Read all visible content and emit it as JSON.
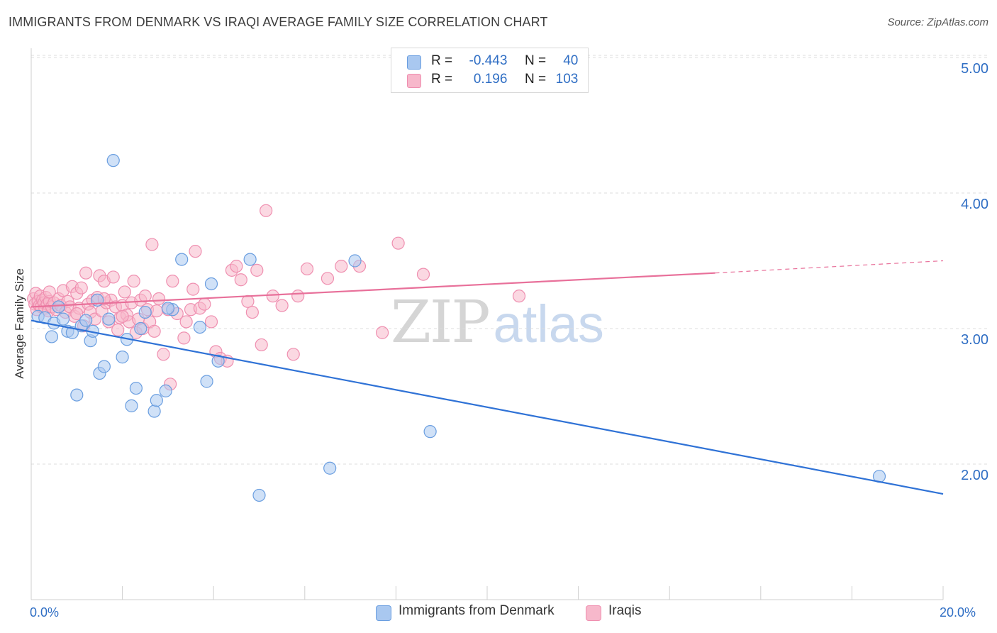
{
  "title": "IMMIGRANTS FROM DENMARK VS IRAQI AVERAGE FAMILY SIZE CORRELATION CHART",
  "source": "Source: ZipAtlas.com",
  "watermark": {
    "zip": "ZIP",
    "atlas": "atlas"
  },
  "legend": {
    "rows": [
      {
        "r_label": "R =",
        "r_value": "-0.443",
        "n_label": "N =",
        "n_value": "40"
      },
      {
        "r_label": "R =",
        "r_value": "0.196",
        "n_label": "N =",
        "n_value": "103"
      }
    ]
  },
  "colors": {
    "blue_fill": "#a9c8f0",
    "blue_stroke": "#6a9ee0",
    "blue_line": "#2f72d6",
    "pink_fill": "#f7b8cb",
    "pink_stroke": "#ef8fb0",
    "pink_line": "#e8709a",
    "grid": "#dcdcdc",
    "axis_text": "#2f6ec4"
  },
  "chart_data": {
    "type": "scatter",
    "title": "IMMIGRANTS FROM DENMARK VS IRAQI AVERAGE FAMILY SIZE CORRELATION CHART",
    "xlabel": "",
    "ylabel": "Average Family Size",
    "xlim": [
      0,
      20
    ],
    "ylim": [
      1.2,
      5.1
    ],
    "x_tick_labels": [
      "0.0%",
      "20.0%"
    ],
    "y_ticks": [
      2.0,
      3.0,
      4.0,
      5.0
    ],
    "y_tick_labels": [
      "2.00",
      "3.00",
      "4.00",
      "5.00"
    ],
    "grid": true,
    "legend_position": "top-center",
    "series": [
      {
        "name": "Immigrants from Denmark",
        "color": "#6a9ee0",
        "r": -0.443,
        "n": 40,
        "trend": {
          "x": [
            0,
            20
          ],
          "y": [
            3.06,
            1.78
          ]
        },
        "points": [
          [
            0.15,
            3.09
          ],
          [
            0.3,
            3.08
          ],
          [
            0.45,
            2.94
          ],
          [
            0.5,
            3.04
          ],
          [
            0.7,
            3.07
          ],
          [
            0.8,
            2.98
          ],
          [
            0.9,
            2.97
          ],
          [
            1.0,
            2.51
          ],
          [
            1.1,
            3.02
          ],
          [
            1.2,
            3.06
          ],
          [
            1.3,
            2.91
          ],
          [
            1.35,
            2.98
          ],
          [
            1.5,
            2.67
          ],
          [
            1.6,
            2.72
          ],
          [
            1.7,
            3.07
          ],
          [
            1.8,
            4.24
          ],
          [
            2.0,
            2.79
          ],
          [
            2.1,
            2.92
          ],
          [
            2.2,
            2.43
          ],
          [
            2.3,
            2.56
          ],
          [
            2.7,
            2.39
          ],
          [
            2.75,
            2.47
          ],
          [
            2.95,
            2.54
          ],
          [
            3.1,
            3.14
          ],
          [
            3.3,
            3.51
          ],
          [
            3.7,
            3.01
          ],
          [
            3.85,
            2.61
          ],
          [
            3.95,
            3.33
          ],
          [
            4.1,
            2.76
          ],
          [
            4.8,
            3.51
          ],
          [
            5.0,
            1.77
          ],
          [
            6.55,
            1.97
          ],
          [
            7.1,
            3.5
          ],
          [
            8.75,
            2.24
          ],
          [
            18.6,
            1.91
          ],
          [
            2.4,
            3.0
          ],
          [
            3.0,
            3.15
          ],
          [
            1.45,
            3.21
          ],
          [
            0.6,
            3.16
          ],
          [
            2.5,
            3.12
          ]
        ]
      },
      {
        "name": "Iraqis",
        "color": "#ef8fb0",
        "r": 0.196,
        "n": 103,
        "trend": {
          "x": [
            0,
            15
          ],
          "y": [
            3.16,
            3.41
          ]
        },
        "trend_dashed": {
          "x": [
            15,
            20
          ],
          "y": [
            3.41,
            3.5
          ]
        },
        "points": [
          [
            0.05,
            3.22
          ],
          [
            0.08,
            3.18
          ],
          [
            0.1,
            3.26
          ],
          [
            0.12,
            3.14
          ],
          [
            0.15,
            3.2
          ],
          [
            0.18,
            3.17
          ],
          [
            0.2,
            3.24
          ],
          [
            0.22,
            3.16
          ],
          [
            0.25,
            3.21
          ],
          [
            0.28,
            3.19
          ],
          [
            0.3,
            3.15
          ],
          [
            0.32,
            3.23
          ],
          [
            0.35,
            3.18
          ],
          [
            0.38,
            3.13
          ],
          [
            0.4,
            3.2
          ],
          [
            0.45,
            3.16
          ],
          [
            0.5,
            3.19
          ],
          [
            0.55,
            3.14
          ],
          [
            0.6,
            3.22
          ],
          [
            0.65,
            3.17
          ],
          [
            0.7,
            3.28
          ],
          [
            0.75,
            3.12
          ],
          [
            0.8,
            3.2
          ],
          [
            0.85,
            3.16
          ],
          [
            0.9,
            3.31
          ],
          [
            0.95,
            3.09
          ],
          [
            1.0,
            3.26
          ],
          [
            1.05,
            3.15
          ],
          [
            1.1,
            3.3
          ],
          [
            1.15,
            3.02
          ],
          [
            1.2,
            3.41
          ],
          [
            1.25,
            3.18
          ],
          [
            1.3,
            3.12
          ],
          [
            1.35,
            3.21
          ],
          [
            1.4,
            3.07
          ],
          [
            1.45,
            3.23
          ],
          [
            1.5,
            3.39
          ],
          [
            1.55,
            3.13
          ],
          [
            1.6,
            3.35
          ],
          [
            1.65,
            3.19
          ],
          [
            1.7,
            3.05
          ],
          [
            1.75,
            3.21
          ],
          [
            1.8,
            3.38
          ],
          [
            1.85,
            3.16
          ],
          [
            1.9,
            2.99
          ],
          [
            1.95,
            3.08
          ],
          [
            2.0,
            3.17
          ],
          [
            2.05,
            3.27
          ],
          [
            2.1,
            3.1
          ],
          [
            2.15,
            3.05
          ],
          [
            2.2,
            3.19
          ],
          [
            2.25,
            3.35
          ],
          [
            2.3,
            2.97
          ],
          [
            2.35,
            3.07
          ],
          [
            2.4,
            3.21
          ],
          [
            2.45,
            3.0
          ],
          [
            2.5,
            3.24
          ],
          [
            2.55,
            3.14
          ],
          [
            2.6,
            3.05
          ],
          [
            2.65,
            3.62
          ],
          [
            2.7,
            2.98
          ],
          [
            2.8,
            3.22
          ],
          [
            2.9,
            2.81
          ],
          [
            3.0,
            3.14
          ],
          [
            3.05,
            2.59
          ],
          [
            3.1,
            3.35
          ],
          [
            3.2,
            3.11
          ],
          [
            3.35,
            2.93
          ],
          [
            3.5,
            3.14
          ],
          [
            3.55,
            3.29
          ],
          [
            3.6,
            3.57
          ],
          [
            3.7,
            3.15
          ],
          [
            3.8,
            3.18
          ],
          [
            3.95,
            3.05
          ],
          [
            4.05,
            2.83
          ],
          [
            4.15,
            2.78
          ],
          [
            4.3,
            2.76
          ],
          [
            4.4,
            3.43
          ],
          [
            4.5,
            3.46
          ],
          [
            4.6,
            3.36
          ],
          [
            4.75,
            3.2
          ],
          [
            4.85,
            3.12
          ],
          [
            4.95,
            3.43
          ],
          [
            5.05,
            2.88
          ],
          [
            5.15,
            3.87
          ],
          [
            5.3,
            3.24
          ],
          [
            5.5,
            3.17
          ],
          [
            5.75,
            2.81
          ],
          [
            5.85,
            3.24
          ],
          [
            6.05,
            3.44
          ],
          [
            6.5,
            3.37
          ],
          [
            6.8,
            3.46
          ],
          [
            7.2,
            3.46
          ],
          [
            7.7,
            2.97
          ],
          [
            8.05,
            3.63
          ],
          [
            8.6,
            3.4
          ],
          [
            10.7,
            3.24
          ],
          [
            3.4,
            3.05
          ],
          [
            2.75,
            3.13
          ],
          [
            1.0,
            3.11
          ],
          [
            0.4,
            3.27
          ],
          [
            1.6,
            3.22
          ],
          [
            2.0,
            3.09
          ]
        ]
      }
    ]
  }
}
